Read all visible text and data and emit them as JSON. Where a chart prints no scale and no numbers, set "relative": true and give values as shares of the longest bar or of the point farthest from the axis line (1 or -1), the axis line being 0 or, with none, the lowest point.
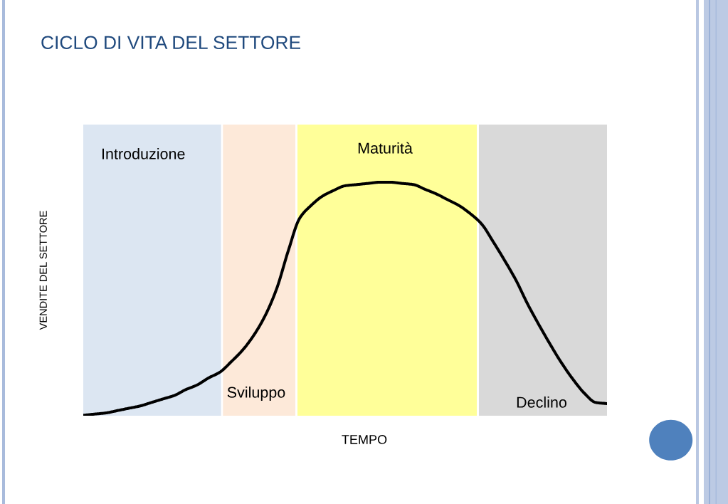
{
  "chart_data": {
    "type": "line",
    "title": "CICLO DI VITA DEL SETTORE",
    "xlabel": "TEMPO",
    "ylabel": "VENDITE DEL SETTORE",
    "relative": true,
    "categories": [
      null,
      null,
      null,
      null,
      null,
      null,
      null,
      null,
      null,
      null,
      null,
      null,
      null,
      null,
      null,
      null,
      null,
      null,
      null,
      null,
      null,
      null,
      null,
      null,
      null,
      null,
      null,
      null,
      null,
      null,
      null,
      null,
      null,
      null,
      null,
      null,
      null,
      null,
      null,
      null,
      null,
      null,
      null,
      null,
      null,
      null,
      null
    ],
    "series": [
      {
        "color": "#000000",
        "values": [
          0,
          0.005,
          0.01,
          0.02,
          0.03,
          0.04,
          0.055,
          0.07,
          0.085,
          0.11,
          0.13,
          0.16,
          0.185,
          0.23,
          0.28,
          0.345,
          0.43,
          0.545,
          0.705,
          0.845,
          0.9,
          0.94,
          0.965,
          0.985,
          0.99,
          0.995,
          1,
          1,
          0.995,
          0.99,
          0.97,
          0.95,
          0.925,
          0.9,
          0.865,
          0.82,
          0.745,
          0.665,
          0.58,
          0.48,
          0.39,
          0.305,
          0.225,
          0.155,
          0.095,
          0.055,
          0.05
        ]
      }
    ],
    "annotations": [
      "Introduzione",
      "Sviluppo",
      "Maturità",
      "Declino"
    ]
  }
}
